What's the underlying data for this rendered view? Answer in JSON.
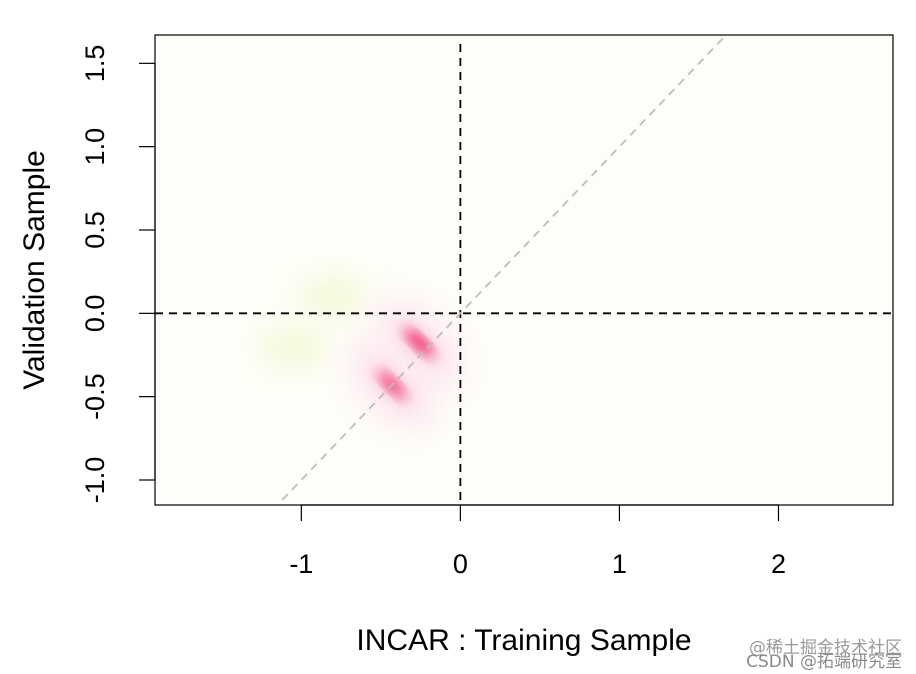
{
  "chart_data": {
    "type": "heatmap",
    "title": "",
    "xlabel": "INCAR : Training Sample",
    "ylabel": "Validation Sample",
    "xlim": [
      -1.92,
      2.72
    ],
    "ylim": [
      -1.15,
      1.67
    ],
    "x_ticks": [
      -1,
      0,
      1,
      2
    ],
    "x_tick_labels": [
      "-1",
      "0",
      "1",
      "2"
    ],
    "y_ticks": [
      -1.0,
      -0.5,
      0.0,
      0.5,
      1.0,
      1.5
    ],
    "y_tick_labels": [
      "-1.0",
      "-0.5",
      "0.0",
      "0.5",
      "1.0",
      "1.5"
    ],
    "background_color": "#fefef8",
    "reference_lines": [
      {
        "kind": "vertical",
        "x": 0,
        "style": "dashed",
        "color": "#000000"
      },
      {
        "kind": "horizontal",
        "y": 0,
        "style": "dashed",
        "color": "#000000"
      },
      {
        "kind": "diagonal",
        "slope": 1,
        "intercept": 0,
        "x_range": [
          -1.12,
          1.66
        ],
        "style": "dashed",
        "color": "#bdbdbd"
      }
    ],
    "density_peaks": [
      {
        "x": -0.26,
        "y": -0.18,
        "intensity": 1.0,
        "color": "#ee0044"
      },
      {
        "x": -0.43,
        "y": -0.43,
        "intensity": 0.75,
        "color": "#ee0044"
      }
    ],
    "faint_regions": [
      {
        "x": -0.8,
        "y": 0.1,
        "color": "#f4f8d8"
      },
      {
        "x": -1.05,
        "y": -0.2,
        "color": "#f4f8d8"
      }
    ],
    "grid": false,
    "legend": "none"
  },
  "watermark": {
    "line1": "@稀土掘金技术社区",
    "line2": "CSDN @拓端研究室"
  }
}
